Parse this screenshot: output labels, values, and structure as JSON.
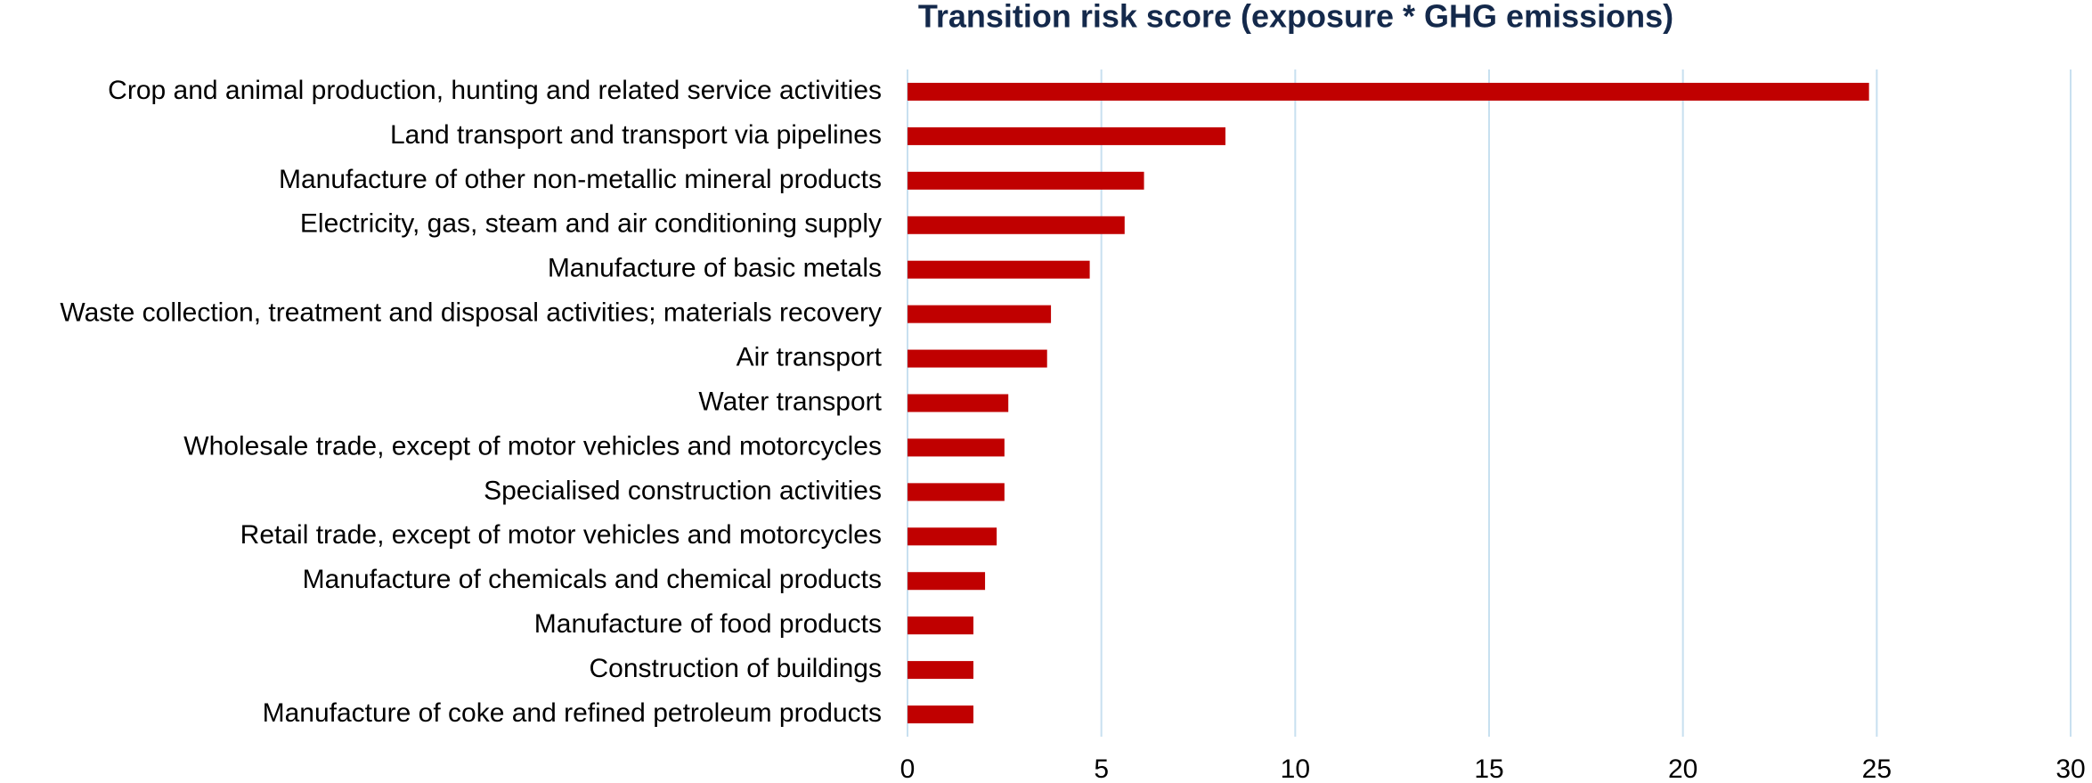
{
  "chart_data": {
    "type": "hbar",
    "title": "Transition risk score (exposure * GHG emissions)",
    "categories": [
      "Crop and animal production, hunting and related service activities",
      "Land transport and transport via pipelines",
      "Manufacture of other non-metallic mineral products",
      "Electricity, gas, steam and air conditioning supply",
      "Manufacture of basic metals",
      "Waste collection, treatment and disposal activities; materials recovery",
      "Air transport",
      "Water transport",
      "Wholesale trade, except of motor vehicles and motorcycles",
      "Specialised construction activities",
      "Retail trade, except of motor vehicles and motorcycles",
      "Manufacture of chemicals and chemical products",
      "Manufacture of food products",
      "Construction of buildings",
      "Manufacture of coke and refined petroleum products"
    ],
    "values": [
      24.8,
      8.2,
      6.1,
      5.6,
      4.7,
      3.7,
      3.6,
      2.6,
      2.5,
      2.5,
      2.3,
      2.0,
      1.7,
      1.7,
      1.7
    ],
    "color": "#c00000",
    "xlim": [
      0,
      30
    ],
    "xticks": [
      0,
      5,
      10,
      15,
      20,
      25,
      30
    ],
    "grid": true
  }
}
